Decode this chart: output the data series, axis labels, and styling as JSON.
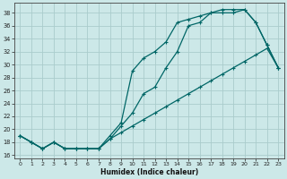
{
  "xlabel": "Humidex (Indice chaleur)",
  "background_color": "#cce8e8",
  "line_color": "#006666",
  "grid_color": "#aacccc",
  "xlim": [
    -0.5,
    23.5
  ],
  "ylim": [
    15.5,
    39.5
  ],
  "xticks": [
    0,
    1,
    2,
    3,
    4,
    5,
    6,
    7,
    8,
    9,
    10,
    11,
    12,
    13,
    14,
    15,
    16,
    17,
    18,
    19,
    20,
    21,
    22,
    23
  ],
  "yticks": [
    16,
    18,
    20,
    22,
    24,
    26,
    28,
    30,
    32,
    34,
    36,
    38
  ],
  "line_straight_x": [
    0,
    1,
    2,
    3,
    4,
    5,
    6,
    7,
    8,
    9,
    10,
    11,
    12,
    13,
    14,
    15,
    16,
    17,
    18,
    19,
    20,
    21,
    22,
    23
  ],
  "line_straight_y": [
    19.0,
    18.0,
    17.0,
    18.0,
    17.0,
    17.0,
    17.0,
    17.0,
    18.5,
    19.5,
    20.5,
    21.5,
    22.5,
    23.5,
    24.5,
    25.5,
    26.5,
    27.5,
    28.5,
    29.5,
    30.5,
    31.5,
    32.5,
    29.5
  ],
  "line_top_x": [
    0,
    1,
    2,
    3,
    4,
    5,
    6,
    7,
    8,
    9,
    10,
    11,
    12,
    13,
    14,
    15,
    16,
    17,
    18,
    19,
    20,
    21,
    22,
    23
  ],
  "line_top_y": [
    19.0,
    18.0,
    17.0,
    18.0,
    17.0,
    17.0,
    17.0,
    17.0,
    19.0,
    21.0,
    29.0,
    31.0,
    32.0,
    33.5,
    36.5,
    37.0,
    37.5,
    38.0,
    38.5,
    38.5,
    38.5,
    36.5,
    33.0,
    29.5
  ],
  "line_mid_x": [
    0,
    1,
    2,
    3,
    4,
    5,
    6,
    7,
    8,
    9,
    10,
    11,
    12,
    13,
    14,
    15,
    16,
    17,
    18,
    19,
    20,
    21,
    22,
    23
  ],
  "line_mid_y": [
    19.0,
    18.0,
    17.0,
    18.0,
    17.0,
    17.0,
    17.0,
    17.0,
    18.5,
    20.5,
    22.5,
    25.5,
    26.5,
    29.5,
    32.0,
    36.0,
    36.5,
    38.0,
    38.0,
    38.0,
    38.5,
    36.5,
    33.0,
    29.5
  ]
}
